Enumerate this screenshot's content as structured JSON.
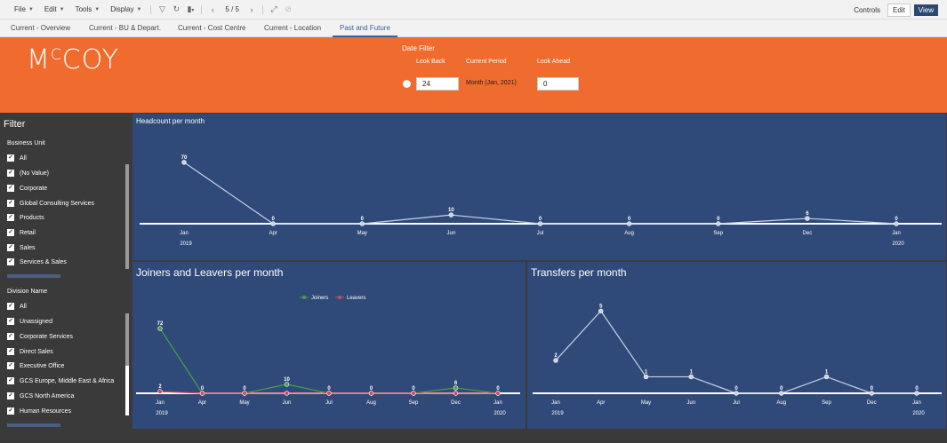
{
  "toolbar": {
    "menus": [
      "File",
      "Edit",
      "Tools",
      "Display"
    ],
    "page_indicator": "5 / 5",
    "controls_label": "Controls",
    "edit_label": "Edit",
    "view_label": "View"
  },
  "tabs": [
    "Current - Overview",
    "Current - BU & Depart.",
    "Current - Cost Centre",
    "Current - Location",
    "Past and Future"
  ],
  "active_tab": "Past and Future",
  "banner": {
    "logo": "McCOY",
    "date_filter_title": "Date Filter",
    "look_back_label": "Look Back",
    "current_period_label": "Current Period",
    "look_ahead_label": "Look Ahead",
    "look_back_value": "24",
    "current_period_value": "Month (Jan, 2021)",
    "look_ahead_value": "0"
  },
  "filter": {
    "title": "Filter",
    "business_unit": {
      "label": "Business Unit",
      "items": [
        "All",
        "(No Value)",
        "Corporate",
        "Global Consulting Services",
        "Products",
        "Retail",
        "Sales",
        "Services & Sales"
      ]
    },
    "division": {
      "label": "Division Name",
      "items": [
        "All",
        "Unassigned",
        "Corporate Services",
        "Direct Sales",
        "Executive Office",
        "GCS Europe, Middle East & Africa",
        "GCS North America",
        "Human Resources"
      ]
    }
  },
  "chart_data": [
    {
      "type": "line",
      "title": "Headcount per month",
      "categories": [
        "Jan",
        "Apr",
        "May",
        "Jun",
        "Jul",
        "Aug",
        "Sep",
        "Dec",
        "Jan"
      ],
      "year_labels": [
        "2019",
        "2020"
      ],
      "series": [
        {
          "values": [
            70,
            0,
            0,
            10,
            0,
            0,
            0,
            6,
            0
          ]
        }
      ],
      "data_labels": [
        "70",
        "0",
        "0",
        "10",
        "0",
        "0",
        "0",
        "6",
        "0"
      ],
      "ylim": [
        0,
        80
      ]
    },
    {
      "type": "line",
      "title": "Joiners and Leavers per month",
      "categories": [
        "Jan",
        "Apr",
        "May",
        "Jun",
        "Jul",
        "Aug",
        "Sep",
        "Dec",
        "Jan"
      ],
      "year_labels": [
        "2019",
        "2020"
      ],
      "legend": "top-center",
      "series": [
        {
          "name": "Joiners",
          "color": "#4a9e4a",
          "values": [
            72,
            0,
            0,
            10,
            0,
            0,
            0,
            6,
            0
          ]
        },
        {
          "name": "Leavers",
          "color": "#d9455f",
          "values": [
            2,
            0,
            0,
            0,
            0,
            0,
            0,
            0,
            0
          ]
        }
      ],
      "ylim": [
        0,
        80
      ]
    },
    {
      "type": "line",
      "title": "Transfers per month",
      "categories": [
        "Jan",
        "Apr",
        "May",
        "Jun",
        "Jul",
        "Aug",
        "Sep",
        "Dec",
        "Jan"
      ],
      "year_labels": [
        "2019",
        "2020"
      ],
      "series": [
        {
          "values": [
            2,
            5,
            1,
            1,
            0,
            0,
            1,
            0,
            0
          ]
        }
      ],
      "ylim": [
        0,
        5.5
      ]
    }
  ]
}
